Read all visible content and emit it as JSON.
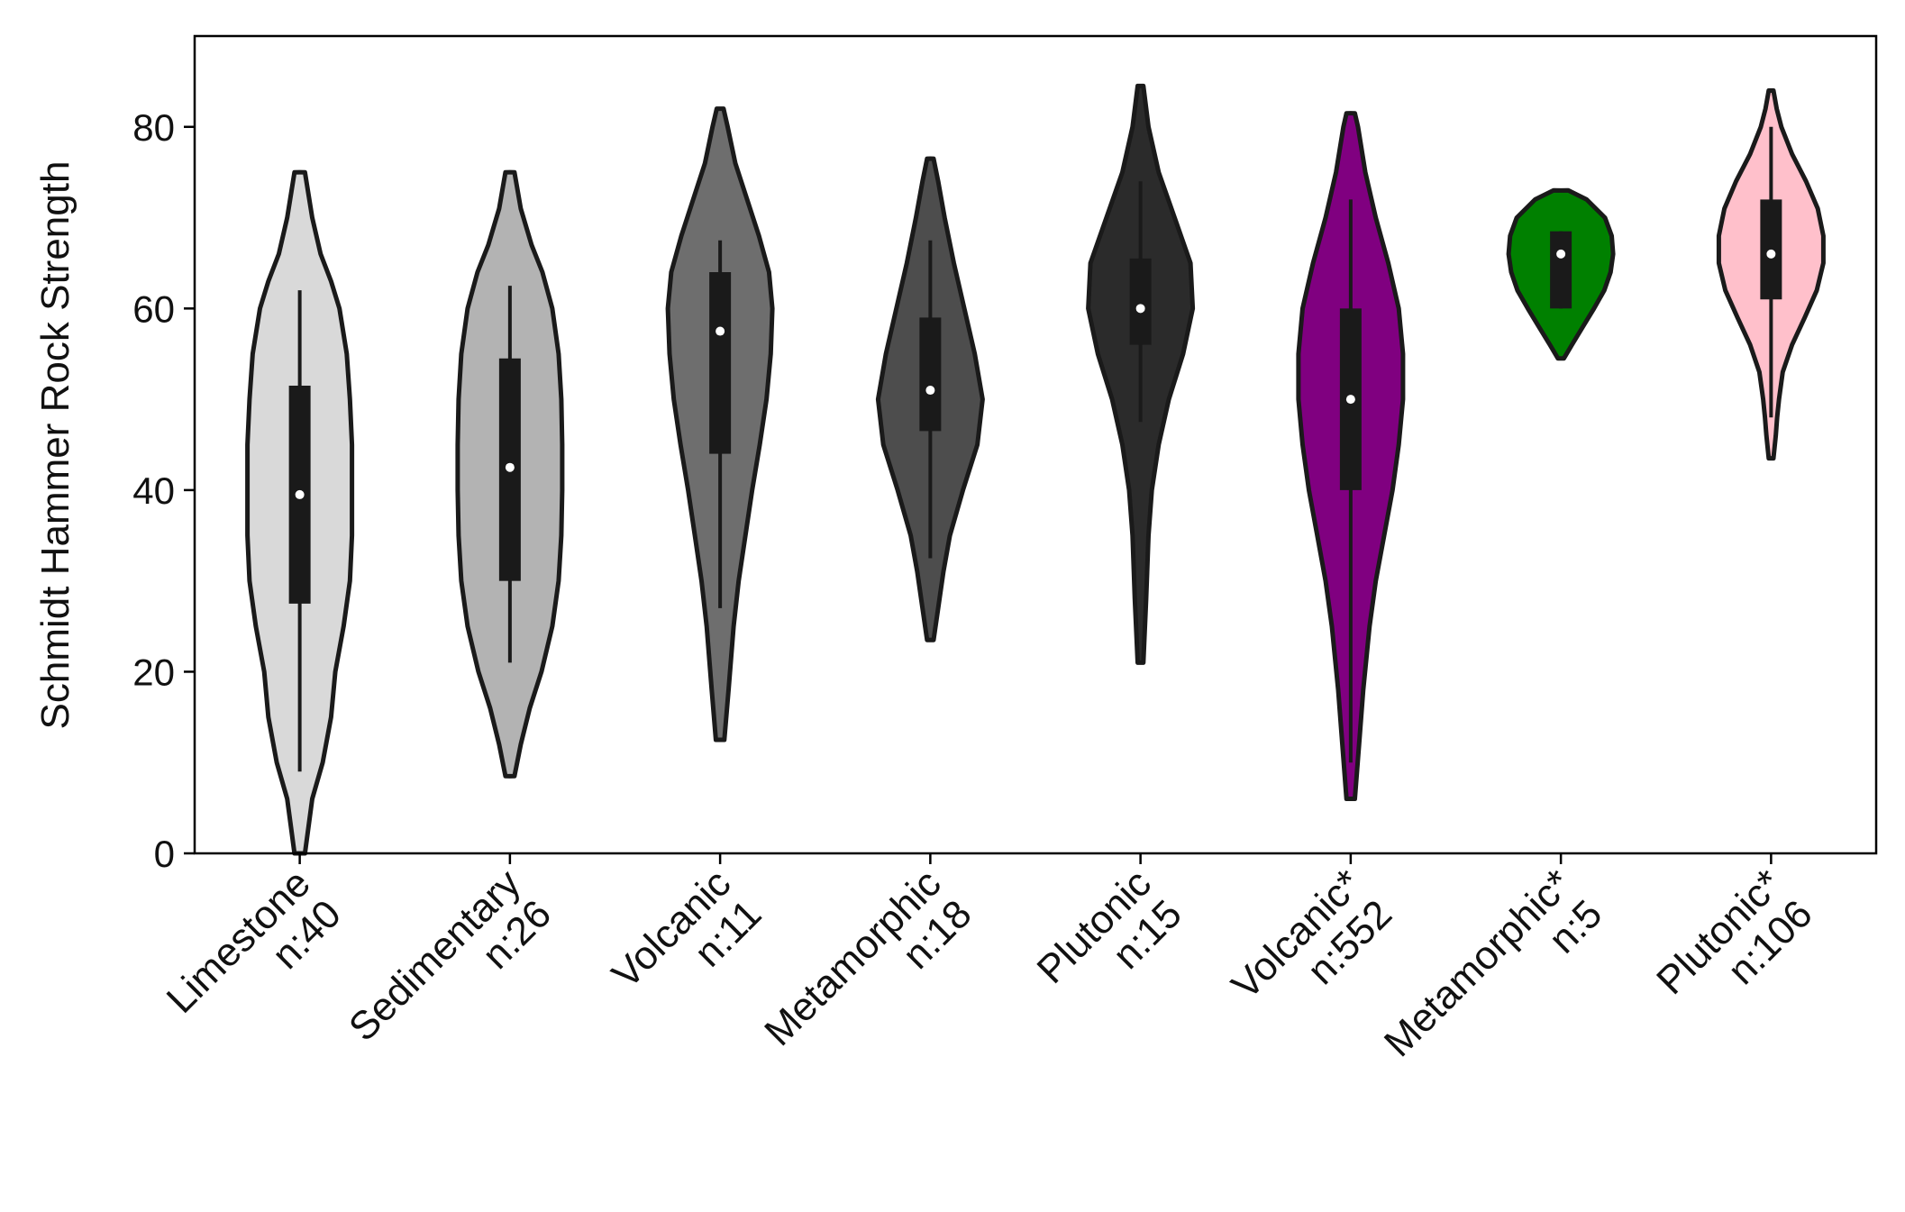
{
  "chart_data": {
    "type": "violin",
    "title": "",
    "xlabel": "",
    "ylabel": "Schmidt Hammer Rock Strength",
    "ylim": [
      0,
      90
    ],
    "yticks": [
      0,
      20,
      40,
      60,
      80
    ],
    "grid": false,
    "legend": "none",
    "categories": [
      {
        "label": "Limestone",
        "n_label": "n:40",
        "color": "#d9d9d9",
        "min": 0,
        "max": 75,
        "q1": 27.5,
        "q3": 51.5,
        "median": 39.5,
        "whisker_low": 9,
        "whisker_high": 62,
        "profile": [
          [
            0,
            0.005
          ],
          [
            6,
            0.012
          ],
          [
            10,
            0.022
          ],
          [
            15,
            0.03
          ],
          [
            20,
            0.034
          ],
          [
            25,
            0.042
          ],
          [
            30,
            0.048
          ],
          [
            35,
            0.05
          ],
          [
            40,
            0.05
          ],
          [
            45,
            0.05
          ],
          [
            50,
            0.048
          ],
          [
            55,
            0.045
          ],
          [
            60,
            0.038
          ],
          [
            63,
            0.03
          ],
          [
            66,
            0.02
          ],
          [
            70,
            0.012
          ],
          [
            75,
            0.005
          ]
        ]
      },
      {
        "label": "Sedimentary",
        "n_label": "n:26",
        "color": "#b3b3b3",
        "min": 8.5,
        "max": 75,
        "q1": 30,
        "q3": 54.5,
        "median": 42.5,
        "whisker_low": 21,
        "whisker_high": 62.5,
        "profile": [
          [
            8.5,
            0.005
          ],
          [
            12,
            0.012
          ],
          [
            16,
            0.022
          ],
          [
            20,
            0.035
          ],
          [
            25,
            0.047
          ],
          [
            30,
            0.054
          ],
          [
            35,
            0.057
          ],
          [
            40,
            0.058
          ],
          [
            45,
            0.058
          ],
          [
            50,
            0.057
          ],
          [
            55,
            0.054
          ],
          [
            60,
            0.047
          ],
          [
            64,
            0.036
          ],
          [
            67,
            0.024
          ],
          [
            71,
            0.012
          ],
          [
            75,
            0.005
          ]
        ]
      },
      {
        "label": "Volcanic",
        "n_label": "n:11",
        "color": "#6e6e6e",
        "min": 12.5,
        "max": 82,
        "q1": 44,
        "q3": 64,
        "median": 57.5,
        "whisker_low": 27,
        "whisker_high": 67.5,
        "profile": [
          [
            12.5,
            0.005
          ],
          [
            18,
            0.01
          ],
          [
            25,
            0.016
          ],
          [
            30,
            0.022
          ],
          [
            35,
            0.03
          ],
          [
            40,
            0.038
          ],
          [
            45,
            0.047
          ],
          [
            50,
            0.055
          ],
          [
            55,
            0.06
          ],
          [
            60,
            0.062
          ],
          [
            64,
            0.058
          ],
          [
            68,
            0.046
          ],
          [
            72,
            0.032
          ],
          [
            76,
            0.018
          ],
          [
            80,
            0.009
          ],
          [
            82,
            0.004
          ]
        ]
      },
      {
        "label": "Metamorphic",
        "n_label": "n:18",
        "color": "#4d4d4d",
        "min": 23.5,
        "max": 76.5,
        "q1": 46.5,
        "q3": 59,
        "median": 51,
        "whisker_low": 32.5,
        "whisker_high": 67.5,
        "profile": [
          [
            23.5,
            0.005
          ],
          [
            27,
            0.012
          ],
          [
            31,
            0.02
          ],
          [
            35,
            0.03
          ],
          [
            40,
            0.05
          ],
          [
            45,
            0.072
          ],
          [
            50,
            0.08
          ],
          [
            55,
            0.068
          ],
          [
            60,
            0.052
          ],
          [
            65,
            0.036
          ],
          [
            70,
            0.022
          ],
          [
            74,
            0.012
          ],
          [
            76.5,
            0.005
          ]
        ]
      },
      {
        "label": "Plutonic",
        "n_label": "n:15",
        "color": "#2b2b2b",
        "min": 21,
        "max": 84.5,
        "q1": 56,
        "q3": 65.5,
        "median": 60,
        "whisker_low": 47.5,
        "whisker_high": 74,
        "profile": [
          [
            21,
            0.005
          ],
          [
            28,
            0.01
          ],
          [
            35,
            0.014
          ],
          [
            40,
            0.02
          ],
          [
            45,
            0.032
          ],
          [
            50,
            0.05
          ],
          [
            55,
            0.075
          ],
          [
            60,
            0.092
          ],
          [
            65,
            0.088
          ],
          [
            70,
            0.06
          ],
          [
            75,
            0.032
          ],
          [
            80,
            0.014
          ],
          [
            84.5,
            0.005
          ]
        ]
      },
      {
        "label": "Volcanic*",
        "n_label": "n:552",
        "color": "#800080",
        "min": 6,
        "max": 81.5,
        "q1": 40,
        "q3": 60,
        "median": 50,
        "whisker_low": 10,
        "whisker_high": 72,
        "profile": [
          [
            6,
            0.004
          ],
          [
            12,
            0.008
          ],
          [
            18,
            0.012
          ],
          [
            25,
            0.018
          ],
          [
            30,
            0.024
          ],
          [
            35,
            0.032
          ],
          [
            40,
            0.04
          ],
          [
            45,
            0.046
          ],
          [
            50,
            0.05
          ],
          [
            55,
            0.05
          ],
          [
            60,
            0.046
          ],
          [
            65,
            0.036
          ],
          [
            70,
            0.024
          ],
          [
            75,
            0.014
          ],
          [
            80,
            0.007
          ],
          [
            81.5,
            0.004
          ]
        ]
      },
      {
        "label": "Metamorphic*",
        "n_label": "n:5",
        "color": "#008000",
        "min": 54.5,
        "max": 73,
        "q1": 60,
        "q3": 68.5,
        "median": 66,
        "whisker_low": 60,
        "whisker_high": 68.5,
        "profile": [
          [
            54.5,
            0.008
          ],
          [
            56,
            0.03
          ],
          [
            58,
            0.06
          ],
          [
            60,
            0.09
          ],
          [
            62,
            0.118
          ],
          [
            64,
            0.135
          ],
          [
            66,
            0.142
          ],
          [
            68,
            0.138
          ],
          [
            70,
            0.12
          ],
          [
            72,
            0.07
          ],
          [
            73,
            0.02
          ]
        ]
      },
      {
        "label": "Plutonic*",
        "n_label": "n:106",
        "color": "#ffc0cb",
        "min": 43.5,
        "max": 84,
        "q1": 61,
        "q3": 72,
        "median": 66,
        "whisker_low": 48,
        "whisker_high": 80,
        "profile": [
          [
            43.5,
            0.005
          ],
          [
            46,
            0.01
          ],
          [
            48,
            0.013
          ],
          [
            50,
            0.017
          ],
          [
            53,
            0.025
          ],
          [
            56,
            0.045
          ],
          [
            59,
            0.072
          ],
          [
            62,
            0.098
          ],
          [
            65,
            0.112
          ],
          [
            68,
            0.112
          ],
          [
            71,
            0.1
          ],
          [
            74,
            0.075
          ],
          [
            77,
            0.045
          ],
          [
            80,
            0.022
          ],
          [
            82,
            0.012
          ],
          [
            84,
            0.005
          ]
        ]
      }
    ]
  }
}
